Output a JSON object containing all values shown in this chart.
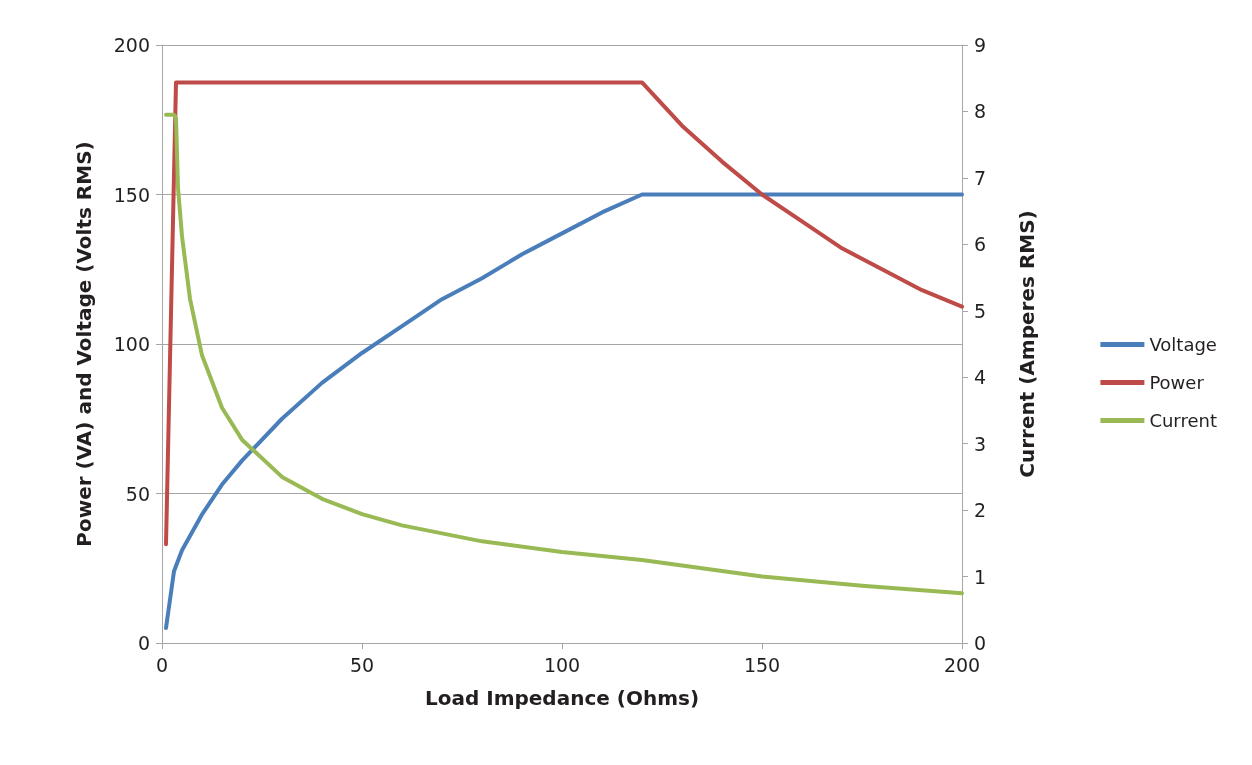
{
  "chart_data": {
    "type": "line",
    "xlabel": "Load Impedance (Ohms)",
    "ylabel": "Power (VA) and Voltage (Volts RMS)",
    "y2label": "Current (Amperes RMS)",
    "xlim": [
      0,
      200
    ],
    "xticks": [
      0,
      50,
      100,
      150,
      200
    ],
    "ylim": [
      0,
      200
    ],
    "yticks": [
      0,
      50,
      100,
      150,
      200
    ],
    "y2lim": [
      0,
      9
    ],
    "y2ticks": [
      0,
      1,
      2,
      3,
      4,
      5,
      6,
      7,
      8,
      9
    ],
    "grid": "y",
    "legend": "right",
    "marker": "none",
    "line_style": "solid",
    "series": [
      {
        "name": "Voltage",
        "color": "#4a7ebb",
        "x": [
          1,
          3,
          5,
          10,
          15,
          20,
          30,
          40,
          50,
          60,
          70,
          80,
          90,
          100,
          110,
          120,
          150,
          200
        ],
        "values": [
          5,
          24,
          31,
          43,
          53,
          61,
          75,
          87,
          97,
          106,
          115,
          122,
          130,
          137,
          144,
          150,
          150,
          150
        ]
      },
      {
        "name": "Power",
        "color": "#be4b48",
        "x": [
          1,
          3.5,
          120,
          130,
          140,
          150,
          160,
          170,
          180,
          190,
          200
        ],
        "values": [
          33,
          187.5,
          187.5,
          173,
          161,
          150,
          141,
          132,
          125,
          118,
          112.5
        ]
      },
      {
        "name": "Current",
        "color": "#98b954",
        "axis": "y2",
        "x": [
          1,
          3,
          3.5,
          4,
          5,
          7,
          10,
          15,
          20,
          30,
          40,
          50,
          60,
          80,
          100,
          120,
          150,
          175,
          200
        ],
        "values": [
          7.95,
          7.95,
          7.9,
          6.85,
          6.12,
          5.18,
          4.33,
          3.54,
          3.06,
          2.5,
          2.17,
          1.94,
          1.77,
          1.53,
          1.37,
          1.25,
          1.0,
          0.86,
          0.75
        ]
      }
    ]
  }
}
